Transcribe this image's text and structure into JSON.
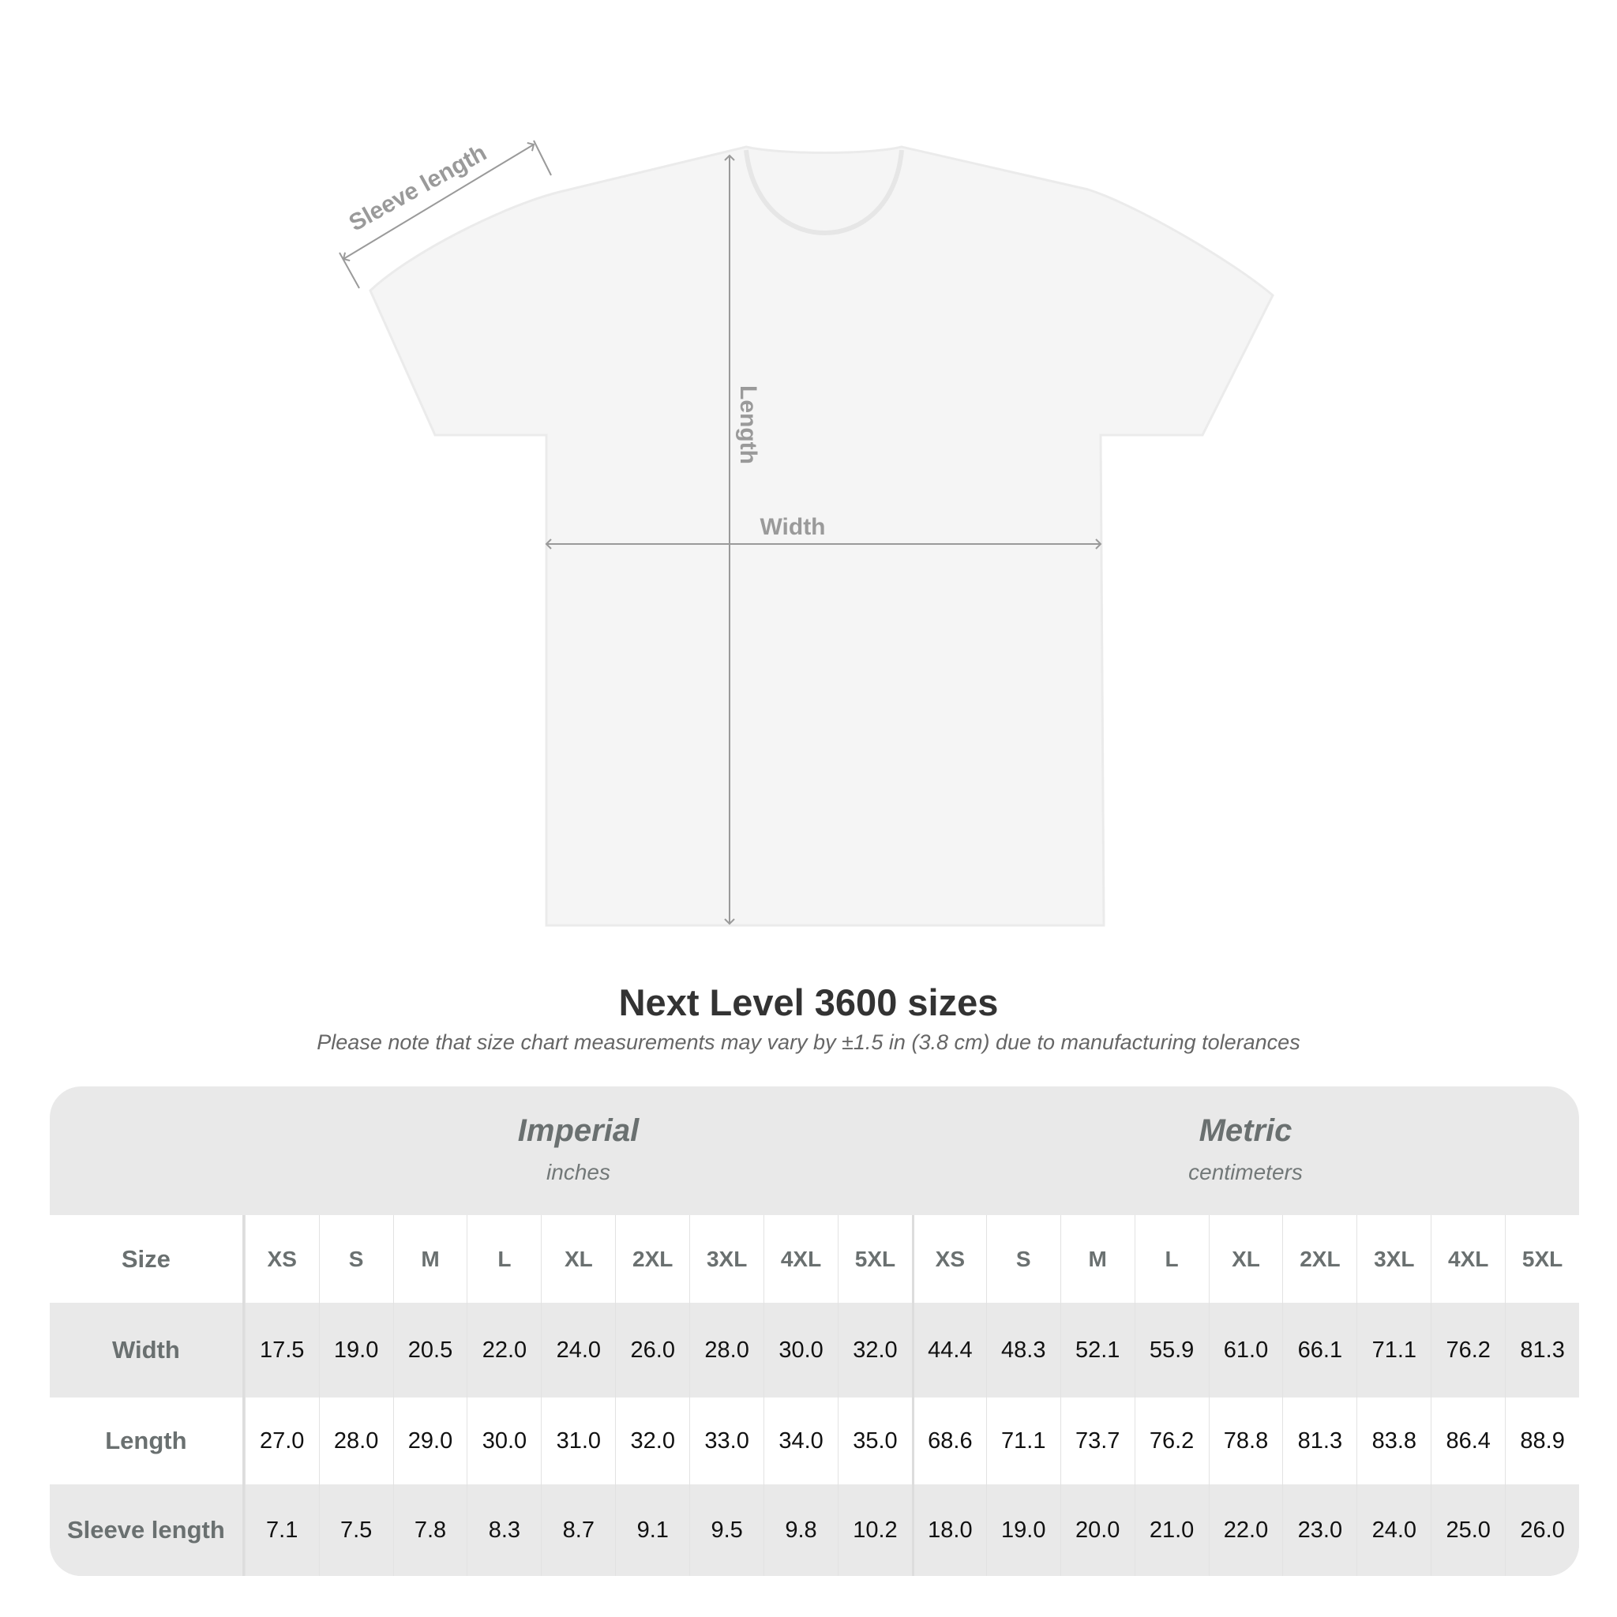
{
  "diagram": {
    "labels": {
      "sleeve": "Sleeve length",
      "length": "Length",
      "width": "Width"
    },
    "colors": {
      "shirt": "#f5f5f5",
      "measure_line": "#9a9a9a"
    }
  },
  "title": "Next Level 3600 sizes",
  "subtitle": "Please note that size chart measurements may vary by ±1.5 in (3.8 cm) due to manufacturing tolerances",
  "table": {
    "imperial": {
      "name": "Imperial",
      "unit": "inches"
    },
    "metric": {
      "name": "Metric",
      "unit": "centimeters"
    },
    "size_label": "Size",
    "sizes": [
      "XS",
      "S",
      "M",
      "L",
      "XL",
      "2XL",
      "3XL",
      "4XL",
      "5XL"
    ],
    "rows": [
      {
        "label": "Width",
        "imperial": [
          "17.5",
          "19.0",
          "20.5",
          "22.0",
          "24.0",
          "26.0",
          "28.0",
          "30.0",
          "32.0"
        ],
        "metric": [
          "44.4",
          "48.3",
          "52.1",
          "55.9",
          "61.0",
          "66.1",
          "71.1",
          "76.2",
          "81.3"
        ]
      },
      {
        "label": "Length",
        "imperial": [
          "27.0",
          "28.0",
          "29.0",
          "30.0",
          "31.0",
          "32.0",
          "33.0",
          "34.0",
          "35.0"
        ],
        "metric": [
          "68.6",
          "71.1",
          "73.7",
          "76.2",
          "78.8",
          "81.3",
          "83.8",
          "86.4",
          "88.9"
        ]
      },
      {
        "label": "Sleeve length",
        "imperial": [
          "7.1",
          "7.5",
          "7.8",
          "8.3",
          "8.7",
          "9.1",
          "9.5",
          "9.8",
          "10.2"
        ],
        "metric": [
          "18.0",
          "19.0",
          "20.0",
          "21.0",
          "22.0",
          "23.0",
          "24.0",
          "25.0",
          "26.0"
        ]
      }
    ]
  }
}
